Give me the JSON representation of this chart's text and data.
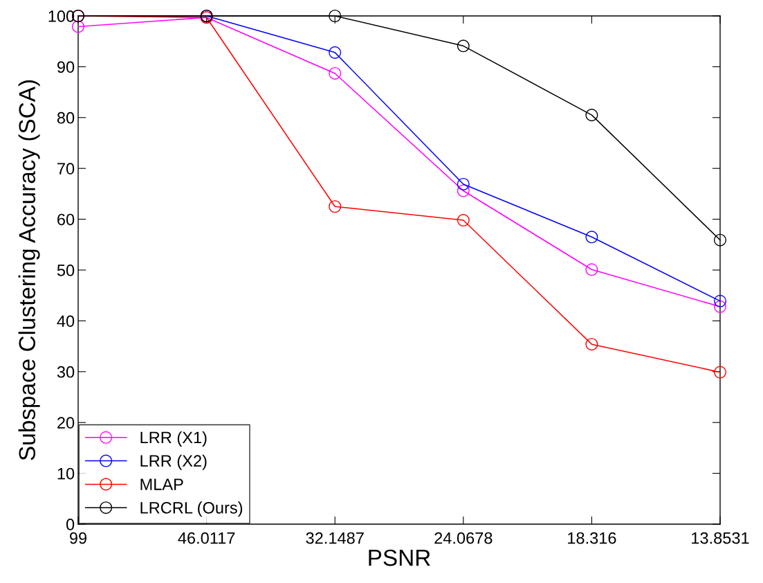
{
  "chart_data": {
    "type": "line",
    "xlabel": "PSNR",
    "ylabel": "Subspace Clustering Accuracy (SCA)",
    "categories": [
      "99",
      "46.0117",
      "32.1487",
      "24.0678",
      "18.316",
      "13.8531"
    ],
    "series": [
      {
        "name": "LRR (X1)",
        "color": "#ff00ff",
        "values": [
          97.9,
          99.7,
          88.7,
          65.6,
          50.1,
          42.8
        ]
      },
      {
        "name": "LRR (X2)",
        "color": "#0000ff",
        "values": [
          100,
          100,
          92.8,
          66.9,
          56.5,
          43.9
        ]
      },
      {
        "name": "MLAP",
        "color": "#ff0000",
        "values": [
          100,
          99.7,
          62.5,
          59.8,
          35.4,
          29.9
        ]
      },
      {
        "name": "LRCRL (Ours)",
        "color": "#000000",
        "values": [
          100,
          100,
          100,
          94.1,
          80.5,
          55.9
        ]
      }
    ],
    "ylim": [
      0,
      100
    ],
    "yticks": [
      0,
      10,
      20,
      30,
      40,
      50,
      60,
      70,
      80,
      90,
      100
    ],
    "grid": false,
    "legend": "bottom left",
    "marker": "circle",
    "line_style": "solid"
  }
}
